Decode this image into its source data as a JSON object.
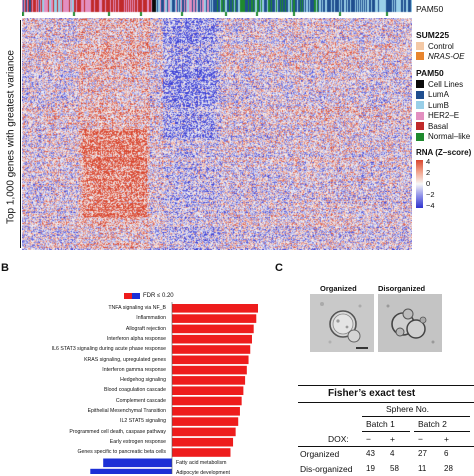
{
  "panel_a": {
    "strip_label": "PAM50",
    "y_axis_label": "Top 1,000 genes with greatest variance",
    "legend_sum225": {
      "title": "SUM225",
      "items": [
        {
          "label": "Control",
          "color": "#f4c9a6"
        },
        {
          "label": "NRAS-OE",
          "color": "#e8852f"
        }
      ]
    },
    "legend_pam50": {
      "title": "PAM50",
      "items": [
        {
          "label": "Cell Lines",
          "color": "#0a0a0a"
        },
        {
          "label": "LumA",
          "color": "#1f4e8f"
        },
        {
          "label": "LumB",
          "color": "#99cfe8"
        },
        {
          "label": "HER2–E",
          "color": "#e38fc0"
        },
        {
          "label": "Basal",
          "color": "#c02a2a"
        },
        {
          "label": "Normal–like",
          "color": "#1f8a2e"
        }
      ]
    },
    "legend_rna": {
      "title": "RNA (Z–score)",
      "ticks": [
        "4",
        "2",
        "0",
        "−2",
        "−4"
      ]
    }
  },
  "panel_b": {
    "letter": "B",
    "legend_label": "FDR ≤ 0.20",
    "pathways": [
      {
        "label": "TNFA signaling via NF_B",
        "direction": "up",
        "value": 1.0
      },
      {
        "label": "Inflammation",
        "direction": "up",
        "value": 0.98
      },
      {
        "label": "Allograft rejection",
        "direction": "up",
        "value": 0.95
      },
      {
        "label": "Interferon alpha response",
        "direction": "up",
        "value": 0.93
      },
      {
        "label": "IL6 STAT3 signaling during acute phase response",
        "direction": "up",
        "value": 0.91
      },
      {
        "label": "KRAS signaling, upregulated genes",
        "direction": "up",
        "value": 0.89
      },
      {
        "label": "Interferon gamma response",
        "direction": "up",
        "value": 0.87
      },
      {
        "label": "Hedgehog signaling",
        "direction": "up",
        "value": 0.85
      },
      {
        "label": "Blood coagulation cascade",
        "direction": "up",
        "value": 0.83
      },
      {
        "label": "Complement cascade",
        "direction": "up",
        "value": 0.81
      },
      {
        "label": "Epithelial Mesenchymal Transition",
        "direction": "up",
        "value": 0.79
      },
      {
        "label": "IL2 STAT5 signaling",
        "direction": "up",
        "value": 0.77
      },
      {
        "label": "Programmed cell death, caspase pathway",
        "direction": "up",
        "value": 0.74
      },
      {
        "label": "Early estrogen response",
        "direction": "up",
        "value": 0.71
      },
      {
        "label": "Genes specific to pancreatic beta cells",
        "direction": "up",
        "value": 0.68
      },
      {
        "label": "Fatty acid metabolism",
        "direction": "down",
        "value": 0.8
      },
      {
        "label": "Adipocyte development",
        "direction": "down",
        "value": 0.95
      }
    ]
  },
  "panel_c": {
    "letter": "C",
    "image_labels": [
      "Organized",
      "Disorganized"
    ],
    "table_title": "Fisher’s exact test",
    "sphere_header": "Sphere No.",
    "batch_headers": [
      "Batch 1",
      "Batch 2"
    ],
    "dox_label": "DOX:",
    "dox_values": [
      "−",
      "+",
      "−",
      "+"
    ],
    "rows": [
      {
        "label": "Organized",
        "values": [
          "43",
          "4",
          "27",
          "6"
        ]
      },
      {
        "label": "Dis-organized",
        "values": [
          "19",
          "58",
          "11",
          "28"
        ]
      }
    ]
  },
  "colors": {
    "heat_red": "#d9462f",
    "heat_blue": "#3c3fd6",
    "bar_red": "#ee1c1c",
    "bar_blue": "#1c2fd6"
  }
}
